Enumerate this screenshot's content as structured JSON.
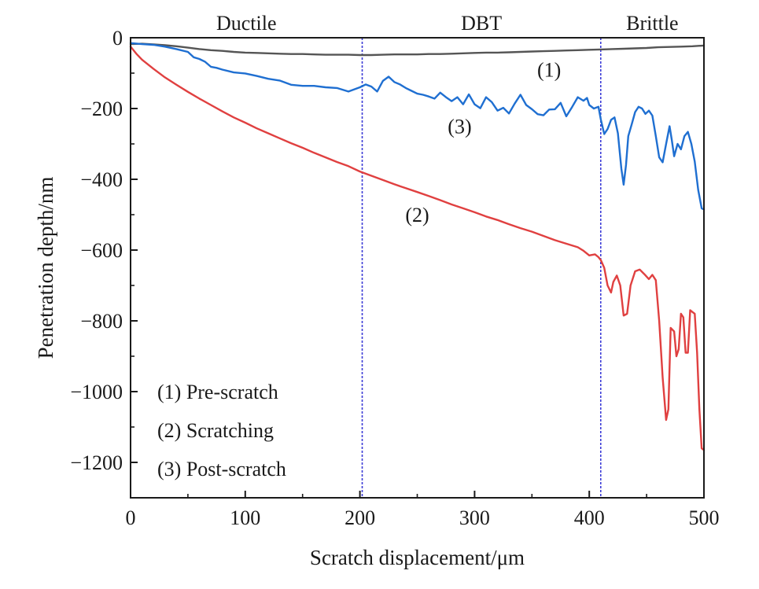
{
  "chart_data": {
    "type": "line",
    "title": "",
    "xlabel": "Scratch displacement/μm",
    "ylabel": "Penetration depth/nm",
    "xlim": [
      0,
      500
    ],
    "ylim": [
      -1300,
      0
    ],
    "x_ticks": [
      0,
      100,
      200,
      300,
      400,
      500
    ],
    "y_ticks": [
      0,
      -200,
      -400,
      -600,
      -800,
      -1000,
      -1200
    ],
    "x_tick_labels": [
      "0",
      "100",
      "200",
      "300",
      "400",
      "500"
    ],
    "y_tick_labels": [
      "0",
      "−200",
      "−400",
      "−600",
      "−800",
      "−1000",
      "−1200"
    ],
    "grid": false,
    "regions": [
      {
        "label": "Ductile",
        "from": 0,
        "to": 202
      },
      {
        "label": "DBT",
        "from": 202,
        "to": 410
      },
      {
        "label": "Brittle",
        "from": 410,
        "to": 500
      }
    ],
    "boundaries": [
      202,
      410
    ],
    "boundary_color": "#3b3bd6",
    "legend": {
      "position": "bottom-left",
      "entries": [
        "(1) Pre-scratch",
        "(2) Scratching",
        "(3) Post-scratch"
      ]
    },
    "series": [
      {
        "id": "pre",
        "label": "(1)",
        "label_at": {
          "x": 365,
          "y": -90
        },
        "color": "#555555",
        "points": [
          [
            0,
            -18
          ],
          [
            10,
            -17
          ],
          [
            20,
            -19
          ],
          [
            30,
            -21
          ],
          [
            40,
            -24
          ],
          [
            50,
            -28
          ],
          [
            60,
            -32
          ],
          [
            70,
            -35
          ],
          [
            80,
            -37
          ],
          [
            90,
            -40
          ],
          [
            100,
            -42
          ],
          [
            110,
            -43
          ],
          [
            120,
            -44
          ],
          [
            130,
            -45
          ],
          [
            140,
            -46
          ],
          [
            150,
            -46
          ],
          [
            160,
            -47
          ],
          [
            170,
            -48
          ],
          [
            180,
            -48
          ],
          [
            190,
            -48
          ],
          [
            200,
            -49
          ],
          [
            210,
            -49
          ],
          [
            220,
            -48
          ],
          [
            230,
            -47
          ],
          [
            240,
            -47
          ],
          [
            250,
            -47
          ],
          [
            260,
            -46
          ],
          [
            270,
            -46
          ],
          [
            280,
            -45
          ],
          [
            290,
            -44
          ],
          [
            300,
            -43
          ],
          [
            310,
            -42
          ],
          [
            320,
            -42
          ],
          [
            330,
            -41
          ],
          [
            340,
            -40
          ],
          [
            350,
            -39
          ],
          [
            360,
            -38
          ],
          [
            370,
            -37
          ],
          [
            380,
            -36
          ],
          [
            390,
            -35
          ],
          [
            400,
            -34
          ],
          [
            410,
            -33
          ],
          [
            420,
            -32
          ],
          [
            430,
            -31
          ],
          [
            440,
            -30
          ],
          [
            450,
            -29
          ],
          [
            460,
            -27
          ],
          [
            470,
            -26
          ],
          [
            480,
            -25
          ],
          [
            490,
            -24
          ],
          [
            500,
            -22
          ]
        ]
      },
      {
        "id": "scratching",
        "label": "(2)",
        "label_at": {
          "x": 250,
          "y": -500
        },
        "color": "#e04040",
        "points": [
          [
            0,
            -25
          ],
          [
            5,
            -45
          ],
          [
            10,
            -62
          ],
          [
            20,
            -88
          ],
          [
            30,
            -112
          ],
          [
            40,
            -133
          ],
          [
            50,
            -153
          ],
          [
            60,
            -172
          ],
          [
            70,
            -190
          ],
          [
            80,
            -208
          ],
          [
            90,
            -225
          ],
          [
            100,
            -240
          ],
          [
            110,
            -256
          ],
          [
            120,
            -270
          ],
          [
            130,
            -284
          ],
          [
            140,
            -298
          ],
          [
            150,
            -311
          ],
          [
            160,
            -325
          ],
          [
            170,
            -338
          ],
          [
            180,
            -351
          ],
          [
            190,
            -363
          ],
          [
            200,
            -378
          ],
          [
            210,
            -390
          ],
          [
            220,
            -402
          ],
          [
            230,
            -414
          ],
          [
            240,
            -425
          ],
          [
            250,
            -436
          ],
          [
            260,
            -447
          ],
          [
            270,
            -459
          ],
          [
            280,
            -471
          ],
          [
            290,
            -482
          ],
          [
            300,
            -493
          ],
          [
            310,
            -505
          ],
          [
            320,
            -515
          ],
          [
            330,
            -527
          ],
          [
            340,
            -538
          ],
          [
            350,
            -548
          ],
          [
            360,
            -560
          ],
          [
            370,
            -572
          ],
          [
            380,
            -582
          ],
          [
            390,
            -592
          ],
          [
            395,
            -602
          ],
          [
            400,
            -615
          ],
          [
            405,
            -612
          ],
          [
            408,
            -620
          ],
          [
            410,
            -628
          ],
          [
            413,
            -650
          ],
          [
            416,
            -700
          ],
          [
            419,
            -720
          ],
          [
            421,
            -690
          ],
          [
            424,
            -672
          ],
          [
            427,
            -700
          ],
          [
            430,
            -785
          ],
          [
            433,
            -780
          ],
          [
            436,
            -700
          ],
          [
            440,
            -660
          ],
          [
            444,
            -655
          ],
          [
            448,
            -668
          ],
          [
            452,
            -682
          ],
          [
            455,
            -670
          ],
          [
            458,
            -685
          ],
          [
            461,
            -800
          ],
          [
            464,
            -960
          ],
          [
            467,
            -1080
          ],
          [
            469,
            -1050
          ],
          [
            471,
            -820
          ],
          [
            474,
            -830
          ],
          [
            476,
            -900
          ],
          [
            478,
            -880
          ],
          [
            480,
            -780
          ],
          [
            482,
            -790
          ],
          [
            484,
            -890
          ],
          [
            486,
            -890
          ],
          [
            488,
            -770
          ],
          [
            490,
            -775
          ],
          [
            492,
            -780
          ],
          [
            494,
            -890
          ],
          [
            496,
            -1050
          ],
          [
            498,
            -1160
          ],
          [
            500,
            -1165
          ]
        ]
      },
      {
        "id": "post",
        "label": "(3)",
        "label_at": {
          "x": 287,
          "y": -250
        },
        "color": "#1f6fd1",
        "points": [
          [
            0,
            -15
          ],
          [
            10,
            -18
          ],
          [
            20,
            -20
          ],
          [
            30,
            -25
          ],
          [
            40,
            -32
          ],
          [
            50,
            -40
          ],
          [
            55,
            -55
          ],
          [
            60,
            -60
          ],
          [
            65,
            -68
          ],
          [
            70,
            -82
          ],
          [
            75,
            -85
          ],
          [
            80,
            -90
          ],
          [
            90,
            -98
          ],
          [
            100,
            -101
          ],
          [
            110,
            -108
          ],
          [
            120,
            -116
          ],
          [
            130,
            -121
          ],
          [
            140,
            -133
          ],
          [
            150,
            -136
          ],
          [
            160,
            -136
          ],
          [
            170,
            -140
          ],
          [
            180,
            -142
          ],
          [
            190,
            -152
          ],
          [
            200,
            -140
          ],
          [
            205,
            -132
          ],
          [
            210,
            -138
          ],
          [
            215,
            -152
          ],
          [
            220,
            -122
          ],
          [
            225,
            -110
          ],
          [
            230,
            -125
          ],
          [
            235,
            -132
          ],
          [
            240,
            -142
          ],
          [
            245,
            -150
          ],
          [
            250,
            -158
          ],
          [
            255,
            -161
          ],
          [
            260,
            -166
          ],
          [
            265,
            -172
          ],
          [
            270,
            -155
          ],
          [
            275,
            -168
          ],
          [
            280,
            -179
          ],
          [
            285,
            -168
          ],
          [
            290,
            -188
          ],
          [
            295,
            -160
          ],
          [
            300,
            -188
          ],
          [
            305,
            -199
          ],
          [
            310,
            -168
          ],
          [
            315,
            -182
          ],
          [
            320,
            -206
          ],
          [
            325,
            -198
          ],
          [
            330,
            -214
          ],
          [
            335,
            -186
          ],
          [
            340,
            -161
          ],
          [
            345,
            -190
          ],
          [
            350,
            -202
          ],
          [
            355,
            -216
          ],
          [
            360,
            -219
          ],
          [
            365,
            -203
          ],
          [
            370,
            -202
          ],
          [
            375,
            -184
          ],
          [
            380,
            -222
          ],
          [
            385,
            -196
          ],
          [
            390,
            -168
          ],
          [
            395,
            -178
          ],
          [
            398,
            -170
          ],
          [
            400,
            -190
          ],
          [
            404,
            -200
          ],
          [
            408,
            -195
          ],
          [
            410,
            -230
          ],
          [
            413,
            -272
          ],
          [
            416,
            -258
          ],
          [
            419,
            -232
          ],
          [
            422,
            -225
          ],
          [
            425,
            -270
          ],
          [
            428,
            -370
          ],
          [
            430,
            -415
          ],
          [
            432,
            -360
          ],
          [
            434,
            -278
          ],
          [
            437,
            -245
          ],
          [
            440,
            -210
          ],
          [
            443,
            -195
          ],
          [
            446,
            -200
          ],
          [
            449,
            -215
          ],
          [
            452,
            -206
          ],
          [
            455,
            -220
          ],
          [
            458,
            -278
          ],
          [
            461,
            -338
          ],
          [
            464,
            -352
          ],
          [
            467,
            -300
          ],
          [
            470,
            -250
          ],
          [
            472,
            -290
          ],
          [
            474,
            -335
          ],
          [
            477,
            -300
          ],
          [
            480,
            -315
          ],
          [
            483,
            -278
          ],
          [
            486,
            -266
          ],
          [
            489,
            -300
          ],
          [
            492,
            -350
          ],
          [
            495,
            -430
          ],
          [
            498,
            -482
          ],
          [
            500,
            -485
          ]
        ]
      }
    ]
  }
}
